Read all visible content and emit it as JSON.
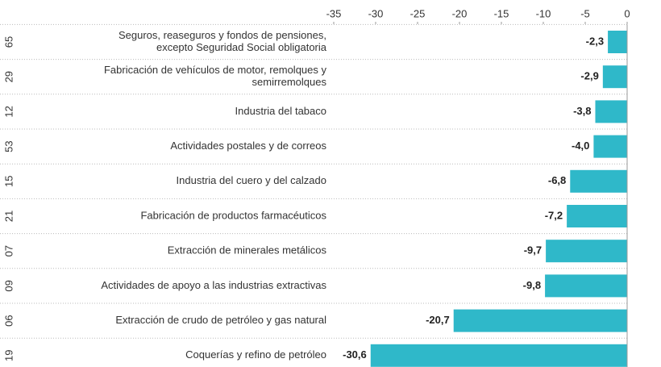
{
  "chart_data": {
    "type": "bar",
    "orientation": "horizontal",
    "codes": [
      "65",
      "29",
      "12",
      "53",
      "15",
      "21",
      "07",
      "09",
      "06",
      "19"
    ],
    "categories": [
      [
        "Seguros, reaseguros y fondos de pensiones,",
        "excepto Seguridad Social obligatoria"
      ],
      [
        "Fabricación de vehículos de motor, remolques y",
        "semirremolques"
      ],
      [
        "Industria del tabaco"
      ],
      [
        "Actividades postales y de correos"
      ],
      [
        "Industria del cuero y del calzado"
      ],
      [
        "Fabricación de productos farmacéuticos"
      ],
      [
        "Extracción de minerales metálicos"
      ],
      [
        "Actividades de apoyo a las industrias extractivas"
      ],
      [
        "Extracción de crudo de petróleo y gas natural"
      ],
      [
        "Coquerías y refino de petróleo"
      ]
    ],
    "values": [
      -2.3,
      -2.9,
      -3.8,
      -4.0,
      -6.8,
      -7.2,
      -9.7,
      -9.8,
      -20.7,
      -30.6
    ],
    "value_labels": [
      "-2,3",
      "-2,9",
      "-3,8",
      "-4,0",
      "-6,8",
      "-7,2",
      "-9,7",
      "-9,8",
      "-20,7",
      "-30,6"
    ],
    "color": "#2fb8c9",
    "xlim": [
      -35,
      0
    ],
    "xticks": [
      -35,
      -30,
      -25,
      -20,
      -15,
      -10,
      -5,
      0
    ]
  }
}
